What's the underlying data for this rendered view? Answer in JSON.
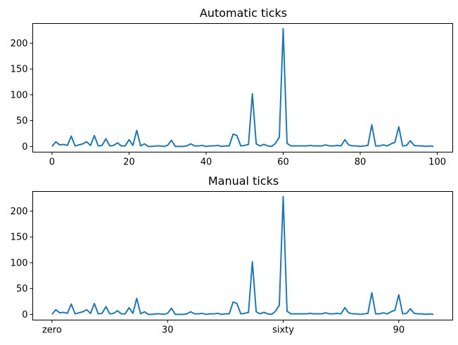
{
  "colors": {
    "line": "#1f77b4",
    "axes": "#000000",
    "background": "#ffffff"
  },
  "chart_data": [
    {
      "type": "line",
      "title": "Automatic ticks",
      "xlabel": "",
      "ylabel": "",
      "xlim": [
        -5,
        104
      ],
      "ylim": [
        -11,
        238
      ],
      "xticks": [
        {
          "value": 0,
          "label": "0"
        },
        {
          "value": 20,
          "label": "20"
        },
        {
          "value": 40,
          "label": "40"
        },
        {
          "value": 60,
          "label": "60"
        },
        {
          "value": 80,
          "label": "80"
        },
        {
          "value": 100,
          "label": "100"
        }
      ],
      "yticks": [
        {
          "value": 0,
          "label": "0"
        },
        {
          "value": 50,
          "label": "50"
        },
        {
          "value": 100,
          "label": "100"
        },
        {
          "value": 150,
          "label": "150"
        },
        {
          "value": 200,
          "label": "200"
        }
      ],
      "grid": false,
      "series": [
        {
          "x_start": 0,
          "values": [
            0,
            9,
            3,
            4,
            2,
            20,
            1,
            3,
            5,
            9,
            2,
            21,
            1,
            2,
            15,
            1,
            2,
            7,
            1,
            1,
            13,
            2,
            31,
            1,
            5,
            0,
            0,
            1,
            1,
            0,
            2,
            12,
            0,
            0,
            0,
            1,
            5,
            1,
            1,
            2,
            0,
            1,
            1,
            2,
            0,
            1,
            1,
            24,
            21,
            1,
            2,
            4,
            102,
            5,
            1,
            4,
            1,
            0,
            6,
            18,
            228,
            6,
            1,
            1,
            1,
            1,
            1,
            2,
            1,
            1,
            1,
            3,
            1,
            1,
            2,
            1,
            13,
            3,
            1,
            1,
            0,
            1,
            2,
            42,
            1,
            1,
            3,
            1,
            5,
            8,
            38,
            1,
            2,
            11,
            2,
            1,
            1,
            0,
            1,
            0
          ]
        }
      ]
    },
    {
      "type": "line",
      "title": "Manual ticks",
      "xlabel": "",
      "ylabel": "",
      "xlim": [
        -5,
        104
      ],
      "ylim": [
        -11,
        238
      ],
      "xticks": [
        {
          "value": 0,
          "label": "zero"
        },
        {
          "value": 30,
          "label": "30"
        },
        {
          "value": 60,
          "label": "sixty"
        },
        {
          "value": 90,
          "label": "90"
        }
      ],
      "yticks": [
        {
          "value": 0,
          "label": "0"
        },
        {
          "value": 50,
          "label": "50"
        },
        {
          "value": 100,
          "label": "100"
        },
        {
          "value": 150,
          "label": "150"
        },
        {
          "value": 200,
          "label": "200"
        }
      ],
      "grid": false,
      "series": [
        {
          "x_start": 0,
          "values": [
            0,
            9,
            3,
            4,
            2,
            20,
            1,
            3,
            5,
            9,
            2,
            21,
            1,
            2,
            15,
            1,
            2,
            7,
            1,
            1,
            13,
            2,
            31,
            1,
            5,
            0,
            0,
            1,
            1,
            0,
            2,
            12,
            0,
            0,
            0,
            1,
            5,
            1,
            1,
            2,
            0,
            1,
            1,
            2,
            0,
            1,
            1,
            24,
            21,
            1,
            2,
            4,
            102,
            5,
            1,
            4,
            1,
            0,
            6,
            18,
            228,
            6,
            1,
            1,
            1,
            1,
            1,
            2,
            1,
            1,
            1,
            3,
            1,
            1,
            2,
            1,
            13,
            3,
            1,
            1,
            0,
            1,
            2,
            42,
            1,
            1,
            3,
            1,
            5,
            8,
            38,
            1,
            2,
            11,
            2,
            1,
            1,
            0,
            1,
            0
          ]
        }
      ]
    }
  ]
}
